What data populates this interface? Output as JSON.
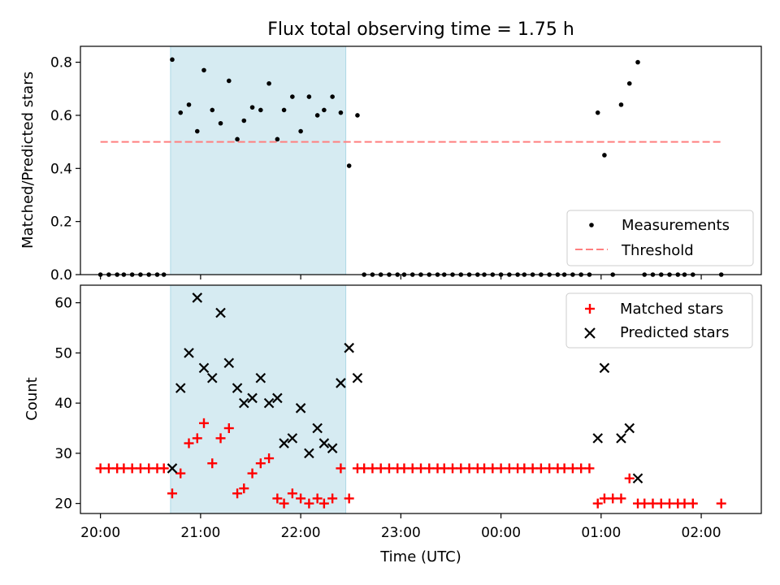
{
  "title": "Flux total observing time = 1.75 h",
  "colors": {
    "shade": "#add8e6",
    "threshold": "#ff7f7f",
    "measurement": "#000000",
    "matched": "#ff0000",
    "predicted": "#000000"
  },
  "chart_data": [
    {
      "type": "scatter",
      "ylabel": "Matched/Predicted stars",
      "xlabel": "",
      "ylim": [
        0,
        0.86
      ],
      "yticks": [
        "0.0",
        "0.2",
        "0.4",
        "0.6",
        "0.8"
      ],
      "xlim": [
        "19:48",
        "02:36"
      ],
      "xticks": [
        "20:00",
        "21:00",
        "22:00",
        "23:00",
        "00:00",
        "01:00",
        "02:00"
      ],
      "xtick_labels_visible": false,
      "shaded_span": [
        "20:42",
        "22:27"
      ],
      "threshold": {
        "value": 0.5,
        "x": [
          "20:00",
          "02:12"
        ],
        "style": "dashed"
      },
      "legend": {
        "placement": "lower-right",
        "entries": [
          "Measurements",
          "Threshold"
        ]
      },
      "series": [
        {
          "name": "Measurements",
          "marker": "dot",
          "points": [
            [
              "20:00",
              0
            ],
            [
              "20:05",
              0
            ],
            [
              "20:10",
              0
            ],
            [
              "20:14",
              0
            ],
            [
              "20:19",
              0
            ],
            [
              "20:24",
              0
            ],
            [
              "20:29",
              0
            ],
            [
              "20:34",
              0
            ],
            [
              "20:38",
              0
            ],
            [
              "20:43",
              0.81
            ],
            [
              "20:48",
              0.61
            ],
            [
              "20:53",
              0.64
            ],
            [
              "20:58",
              0.54
            ],
            [
              "21:02",
              0.77
            ],
            [
              "21:07",
              0.62
            ],
            [
              "21:12",
              0.57
            ],
            [
              "21:17",
              0.73
            ],
            [
              "21:22",
              0.51
            ],
            [
              "21:26",
              0.58
            ],
            [
              "21:31",
              0.63
            ],
            [
              "21:36",
              0.62
            ],
            [
              "21:41",
              0.72
            ],
            [
              "21:46",
              0.51
            ],
            [
              "21:50",
              0.62
            ],
            [
              "21:55",
              0.67
            ],
            [
              "22:00",
              0.54
            ],
            [
              "22:05",
              0.67
            ],
            [
              "22:10",
              0.6
            ],
            [
              "22:14",
              0.62
            ],
            [
              "22:19",
              0.67
            ],
            [
              "22:24",
              0.61
            ],
            [
              "22:29",
              0.41
            ],
            [
              "22:34",
              0.6
            ],
            [
              "22:38",
              0
            ],
            [
              "22:43",
              0
            ],
            [
              "22:48",
              0
            ],
            [
              "22:53",
              0
            ],
            [
              "22:58",
              0
            ],
            [
              "23:02",
              0
            ],
            [
              "23:07",
              0
            ],
            [
              "23:12",
              0
            ],
            [
              "23:17",
              0
            ],
            [
              "23:22",
              0
            ],
            [
              "23:26",
              0
            ],
            [
              "23:31",
              0
            ],
            [
              "23:36",
              0
            ],
            [
              "23:41",
              0
            ],
            [
              "23:46",
              0
            ],
            [
              "23:50",
              0
            ],
            [
              "23:55",
              0
            ],
            [
              "00:00",
              0
            ],
            [
              "00:05",
              0
            ],
            [
              "00:10",
              0
            ],
            [
              "00:14",
              0
            ],
            [
              "00:19",
              0
            ],
            [
              "00:24",
              0
            ],
            [
              "00:29",
              0
            ],
            [
              "00:34",
              0
            ],
            [
              "00:38",
              0
            ],
            [
              "00:43",
              0
            ],
            [
              "00:48",
              0
            ],
            [
              "00:53",
              0
            ],
            [
              "00:58",
              0.61
            ],
            [
              "01:02",
              0.45
            ],
            [
              "01:07",
              0
            ],
            [
              "01:12",
              0.64
            ],
            [
              "01:17",
              0.72
            ],
            [
              "01:22",
              0.8
            ],
            [
              "01:26",
              0
            ],
            [
              "01:31",
              0
            ],
            [
              "01:36",
              0
            ],
            [
              "01:41",
              0
            ],
            [
              "01:46",
              0
            ],
            [
              "01:50",
              0
            ],
            [
              "01:55",
              0
            ],
            [
              "02:12",
              0
            ]
          ]
        }
      ]
    },
    {
      "type": "scatter",
      "ylabel": "Count",
      "xlabel": "Time (UTC)",
      "ylim": [
        18,
        63.5
      ],
      "yticks": [
        "20",
        "30",
        "40",
        "50",
        "60"
      ],
      "xlim": [
        "19:48",
        "02:36"
      ],
      "xticks": [
        "20:00",
        "21:00",
        "22:00",
        "23:00",
        "00:00",
        "01:00",
        "02:00"
      ],
      "shaded_span": [
        "20:42",
        "22:27"
      ],
      "legend": {
        "placement": "upper-right",
        "entries": [
          "Matched stars",
          "Predicted stars"
        ]
      },
      "series": [
        {
          "name": "Matched stars",
          "marker": "plus",
          "points": [
            [
              "20:00",
              27
            ],
            [
              "20:05",
              27
            ],
            [
              "20:10",
              27
            ],
            [
              "20:14",
              27
            ],
            [
              "20:19",
              27
            ],
            [
              "20:24",
              27
            ],
            [
              "20:29",
              27
            ],
            [
              "20:34",
              27
            ],
            [
              "20:38",
              27
            ],
            [
              "20:43",
              22
            ],
            [
              "20:48",
              26
            ],
            [
              "20:53",
              32
            ],
            [
              "20:58",
              33
            ],
            [
              "21:02",
              36
            ],
            [
              "21:07",
              28
            ],
            [
              "21:12",
              33
            ],
            [
              "21:17",
              35
            ],
            [
              "21:22",
              22
            ],
            [
              "21:26",
              23
            ],
            [
              "21:31",
              26
            ],
            [
              "21:36",
              28
            ],
            [
              "21:41",
              29
            ],
            [
              "21:46",
              21
            ],
            [
              "21:50",
              20
            ],
            [
              "21:55",
              22
            ],
            [
              "22:00",
              21
            ],
            [
              "22:05",
              20
            ],
            [
              "22:10",
              21
            ],
            [
              "22:14",
              20
            ],
            [
              "22:19",
              21
            ],
            [
              "22:24",
              27
            ],
            [
              "22:29",
              21
            ],
            [
              "22:34",
              27
            ],
            [
              "22:38",
              27
            ],
            [
              "22:43",
              27
            ],
            [
              "22:48",
              27
            ],
            [
              "22:53",
              27
            ],
            [
              "22:58",
              27
            ],
            [
              "23:02",
              27
            ],
            [
              "23:07",
              27
            ],
            [
              "23:12",
              27
            ],
            [
              "23:17",
              27
            ],
            [
              "23:22",
              27
            ],
            [
              "23:26",
              27
            ],
            [
              "23:31",
              27
            ],
            [
              "23:36",
              27
            ],
            [
              "23:41",
              27
            ],
            [
              "23:46",
              27
            ],
            [
              "23:50",
              27
            ],
            [
              "23:55",
              27
            ],
            [
              "00:00",
              27
            ],
            [
              "00:05",
              27
            ],
            [
              "00:10",
              27
            ],
            [
              "00:14",
              27
            ],
            [
              "00:19",
              27
            ],
            [
              "00:24",
              27
            ],
            [
              "00:29",
              27
            ],
            [
              "00:34",
              27
            ],
            [
              "00:38",
              27
            ],
            [
              "00:43",
              27
            ],
            [
              "00:48",
              27
            ],
            [
              "00:53",
              27
            ],
            [
              "00:58",
              20
            ],
            [
              "01:02",
              21
            ],
            [
              "01:07",
              21
            ],
            [
              "01:12",
              21
            ],
            [
              "01:17",
              25
            ],
            [
              "01:22",
              20
            ],
            [
              "01:26",
              20
            ],
            [
              "01:31",
              20
            ],
            [
              "01:36",
              20
            ],
            [
              "01:41",
              20
            ],
            [
              "01:46",
              20
            ],
            [
              "01:50",
              20
            ],
            [
              "01:55",
              20
            ],
            [
              "02:12",
              20
            ]
          ]
        },
        {
          "name": "Predicted stars",
          "marker": "x",
          "points": [
            [
              "20:43",
              27
            ],
            [
              "20:48",
              43
            ],
            [
              "20:53",
              50
            ],
            [
              "20:58",
              61
            ],
            [
              "21:02",
              47
            ],
            [
              "21:07",
              45
            ],
            [
              "21:12",
              58
            ],
            [
              "21:17",
              48
            ],
            [
              "21:22",
              43
            ],
            [
              "21:26",
              40
            ],
            [
              "21:31",
              41
            ],
            [
              "21:36",
              45
            ],
            [
              "21:41",
              40
            ],
            [
              "21:46",
              41
            ],
            [
              "21:50",
              32
            ],
            [
              "21:55",
              33
            ],
            [
              "22:00",
              39
            ],
            [
              "22:05",
              30
            ],
            [
              "22:10",
              35
            ],
            [
              "22:14",
              32
            ],
            [
              "22:19",
              31
            ],
            [
              "22:24",
              44
            ],
            [
              "22:29",
              51
            ],
            [
              "22:34",
              45
            ],
            [
              "00:58",
              33
            ],
            [
              "01:02",
              47
            ],
            [
              "01:12",
              33
            ],
            [
              "01:17",
              35
            ],
            [
              "01:22",
              25
            ]
          ]
        }
      ]
    }
  ]
}
